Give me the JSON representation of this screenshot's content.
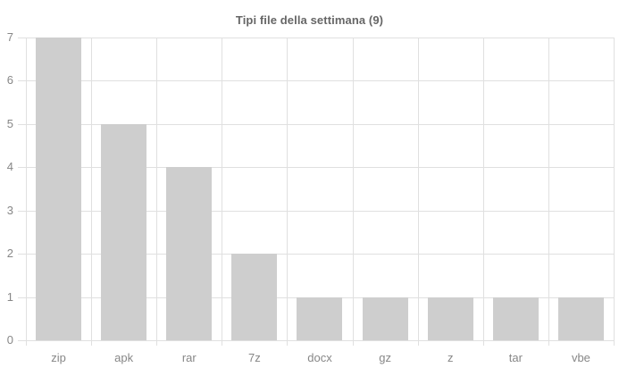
{
  "chart_data": {
    "type": "bar",
    "title": "Tipi file della settimana (9)",
    "categories": [
      "zip",
      "apk",
      "rar",
      "7z",
      "docx",
      "gz",
      "z",
      "tar",
      "vbe"
    ],
    "values": [
      7,
      5,
      4,
      2,
      1,
      1,
      1,
      1,
      1
    ],
    "xlabel": "",
    "ylabel": "",
    "ylim": [
      0,
      7
    ],
    "y_ticks": [
      0,
      1,
      2,
      3,
      4,
      5,
      6,
      7
    ],
    "grid": true,
    "legend": "none",
    "colors": {
      "background": "#ffffff",
      "bar": "#cecece",
      "gridline": "#e0e0e0",
      "tick_text": "#878787",
      "title_text": "#666666"
    }
  }
}
